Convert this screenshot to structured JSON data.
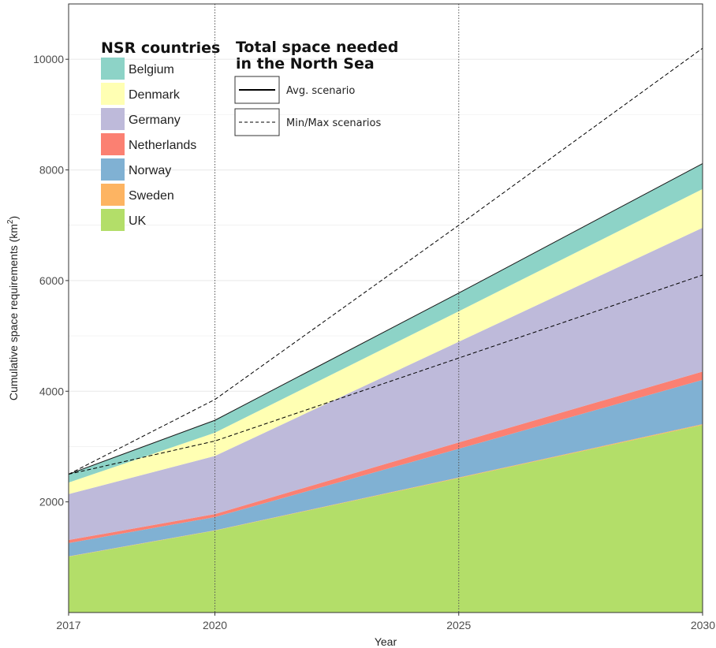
{
  "chart_data": {
    "type": "area",
    "stacked": true,
    "x": [
      2017,
      2020,
      2025,
      2030
    ],
    "xlabel": "Year",
    "ylabel": "Cumulative space requirements (km",
    "ylabel_sup": "2",
    "ylabel_close": ")",
    "xlim": [
      2017,
      2030
    ],
    "ylim": [
      0,
      11000
    ],
    "x_ticks": [
      2017,
      2020,
      2025,
      2030
    ],
    "y_ticks": [
      2000,
      4000,
      6000,
      8000,
      10000
    ],
    "grid": true,
    "vertical_reference_lines": [
      2020,
      2025
    ],
    "series": [
      {
        "name": "UK",
        "color": "#b3de69",
        "values": [
          1010,
          1480,
          2430,
          3390
        ]
      },
      {
        "name": "Sweden",
        "color": "#fdb462",
        "values": [
          5,
          5,
          10,
          15
        ]
      },
      {
        "name": "Norway",
        "color": "#80b1d3",
        "values": [
          240,
          240,
          520,
          800
        ]
      },
      {
        "name": "Netherlands",
        "color": "#fb8072",
        "values": [
          55,
          55,
          115,
          150
        ]
      },
      {
        "name": "Germany",
        "color": "#bebada",
        "values": [
          830,
          1050,
          1820,
          2600
        ]
      },
      {
        "name": "Denmark",
        "color": "#ffffb3",
        "values": [
          210,
          420,
          550,
          700
        ]
      },
      {
        "name": "Belgium",
        "color": "#8dd3c7",
        "values": [
          150,
          230,
          330,
          460
        ]
      }
    ],
    "scenario_lines": {
      "avg": [
        2500,
        3475,
        5775,
        8115
      ],
      "max": [
        2500,
        3850,
        7000,
        10200
      ],
      "min": [
        2500,
        3100,
        4600,
        6100
      ]
    },
    "legend_countries": {
      "title": "NSR countries",
      "placement": "top-left",
      "items": [
        {
          "label": "Belgium",
          "color": "#8dd3c7"
        },
        {
          "label": "Denmark",
          "color": "#ffffb3"
        },
        {
          "label": "Germany",
          "color": "#bebada"
        },
        {
          "label": "Netherlands",
          "color": "#fb8072"
        },
        {
          "label": "Norway",
          "color": "#80b1d3"
        },
        {
          "label": "Sweden",
          "color": "#fdb462"
        },
        {
          "label": "UK",
          "color": "#b3de69"
        }
      ]
    },
    "legend_scenarios": {
      "title_line1": "Total space needed",
      "title_line2": "in the North Sea",
      "avg_label": "Avg. scenario",
      "minmax_label": "Min/Max scenarios"
    }
  }
}
